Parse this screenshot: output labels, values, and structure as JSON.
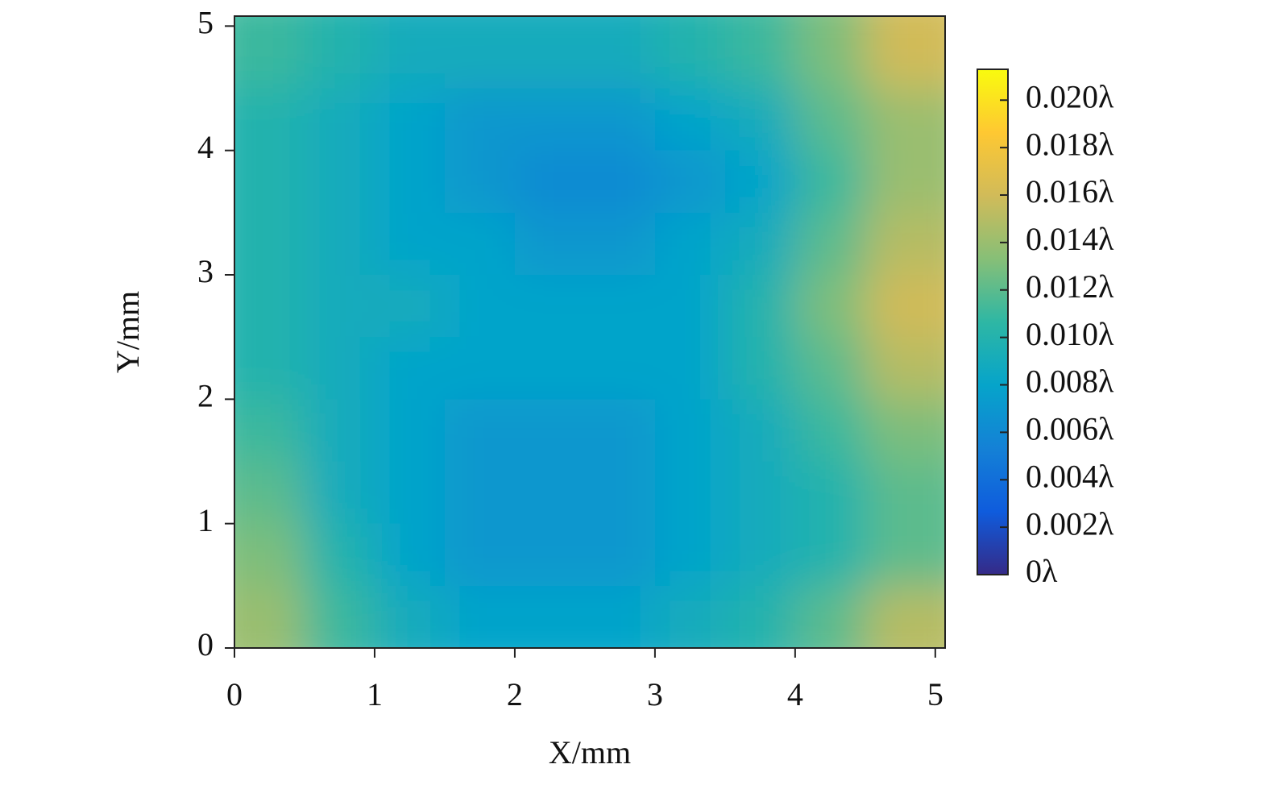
{
  "chart_data": {
    "type": "heatmap",
    "x_label": "X/mm",
    "y_label": "Y/mm",
    "x": [
      0.25,
      0.75,
      1.25,
      1.75,
      2.25,
      2.75,
      3.25,
      3.75,
      4.25,
      4.75
    ],
    "y": [
      4.75,
      4.25,
      3.75,
      3.25,
      2.75,
      2.25,
      1.75,
      1.25,
      0.75,
      0.25
    ],
    "z": [
      [
        0.011,
        0.01,
        0.009,
        0.009,
        0.009,
        0.009,
        0.01,
        0.011,
        0.013,
        0.016
      ],
      [
        0.01,
        0.009,
        0.008,
        0.007,
        0.007,
        0.007,
        0.008,
        0.009,
        0.012,
        0.014
      ],
      [
        0.01,
        0.009,
        0.008,
        0.007,
        0.006,
        0.006,
        0.007,
        0.008,
        0.011,
        0.014
      ],
      [
        0.01,
        0.009,
        0.008,
        0.008,
        0.007,
        0.007,
        0.008,
        0.009,
        0.012,
        0.015
      ],
      [
        0.01,
        0.009,
        0.009,
        0.008,
        0.008,
        0.008,
        0.008,
        0.01,
        0.013,
        0.016
      ],
      [
        0.01,
        0.009,
        0.008,
        0.008,
        0.008,
        0.008,
        0.008,
        0.01,
        0.012,
        0.015
      ],
      [
        0.011,
        0.009,
        0.008,
        0.007,
        0.007,
        0.007,
        0.008,
        0.009,
        0.011,
        0.013
      ],
      [
        0.012,
        0.009,
        0.008,
        0.007,
        0.007,
        0.007,
        0.008,
        0.009,
        0.01,
        0.012
      ],
      [
        0.013,
        0.01,
        0.008,
        0.007,
        0.007,
        0.007,
        0.008,
        0.009,
        0.01,
        0.012
      ],
      [
        0.014,
        0.011,
        0.009,
        0.008,
        0.008,
        0.008,
        0.009,
        0.01,
        0.012,
        0.015
      ]
    ],
    "xlim": [
      0,
      5.07
    ],
    "ylim": [
      0,
      5.08
    ],
    "xticks": [
      0,
      1,
      2,
      3,
      4,
      5
    ],
    "yticks": [
      0,
      1,
      2,
      3,
      4,
      5
    ],
    "clim": [
      0,
      0.0213
    ],
    "cticks": [
      {
        "value": 0,
        "label": "0λ"
      },
      {
        "value": 0.002,
        "label": "0.002λ"
      },
      {
        "value": 0.004,
        "label": "0.004λ"
      },
      {
        "value": 0.006,
        "label": "0.006λ"
      },
      {
        "value": 0.008,
        "label": "0.008λ"
      },
      {
        "value": 0.01,
        "label": "0.010λ"
      },
      {
        "value": 0.012,
        "label": "0.012λ"
      },
      {
        "value": 0.014,
        "label": "0.014λ"
      },
      {
        "value": 0.016,
        "label": "0.016λ"
      },
      {
        "value": 0.018,
        "label": "0.018λ"
      },
      {
        "value": 0.02,
        "label": "0.020λ"
      }
    ],
    "colormap": [
      "#352a87",
      "#0f5cdd",
      "#1481d6",
      "#06a4ca",
      "#2eb7a4",
      "#87bf77",
      "#d1bb59",
      "#fec832",
      "#f9fb0e"
    ]
  }
}
